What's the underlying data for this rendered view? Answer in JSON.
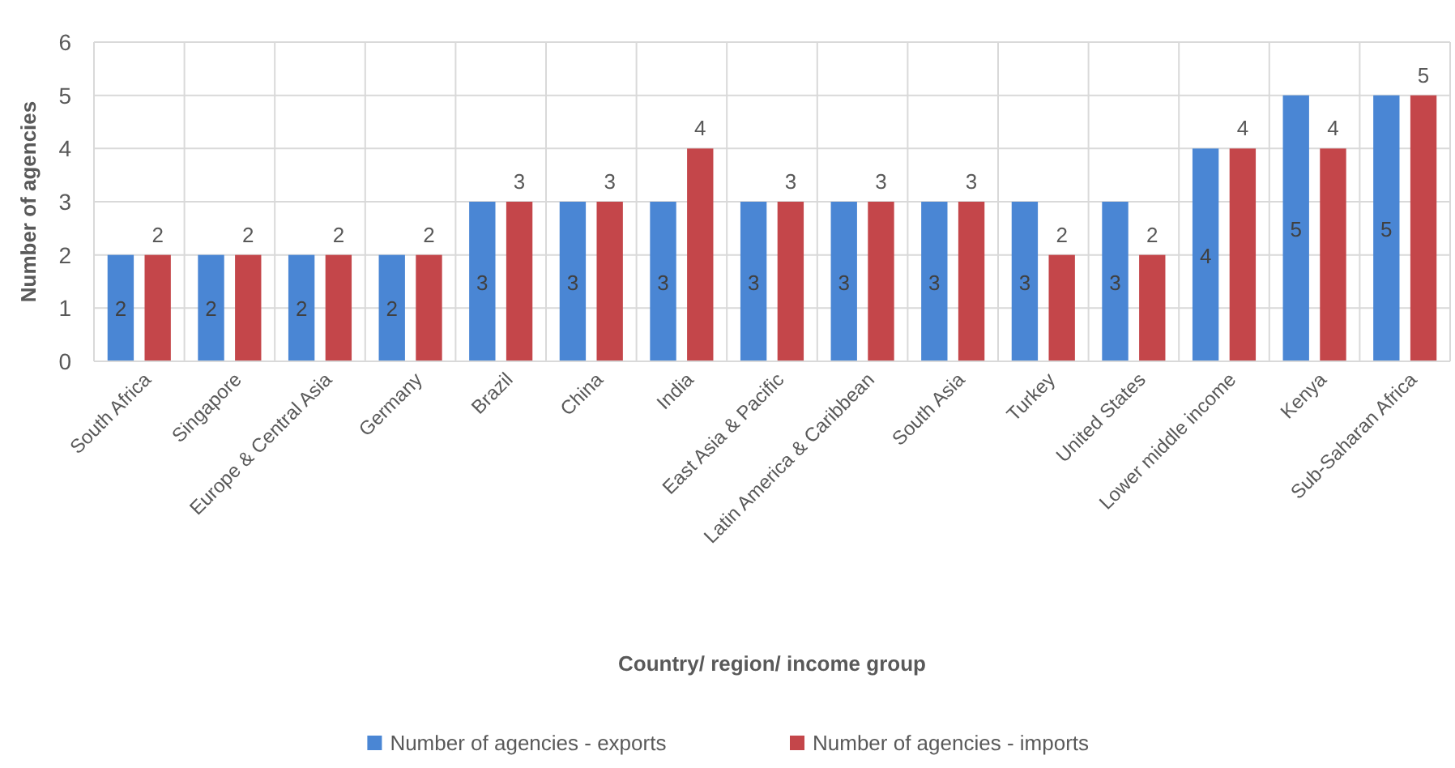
{
  "chart_data": {
    "type": "bar",
    "categories": [
      "South Africa",
      "Singapore",
      "Europe & Central Asia",
      "Germany",
      "Brazil",
      "China",
      "India",
      "East Asia & Pacific",
      "Latin America & Caribbean",
      "South Asia",
      "Turkey",
      "United States",
      "Lower middle income",
      "Kenya",
      "Sub-Saharan Africa"
    ],
    "series": [
      {
        "name": "Number of agencies - exports",
        "color": "#4a86d4",
        "values": [
          2,
          2,
          2,
          2,
          3,
          3,
          3,
          3,
          3,
          3,
          3,
          3,
          4,
          5,
          5
        ]
      },
      {
        "name": "Number of agencies - imports",
        "color": "#c4464a",
        "values": [
          2,
          2,
          2,
          2,
          3,
          3,
          4,
          3,
          3,
          3,
          2,
          2,
          4,
          4,
          5
        ]
      }
    ],
    "xlabel": "Country/ region/ income group",
    "ylabel": "Number of agencies",
    "ylim": [
      0,
      6
    ],
    "yticks": [
      0,
      1,
      2,
      3,
      4,
      5,
      6
    ],
    "grid": true,
    "legend": "bottom",
    "data_labels": true
  }
}
